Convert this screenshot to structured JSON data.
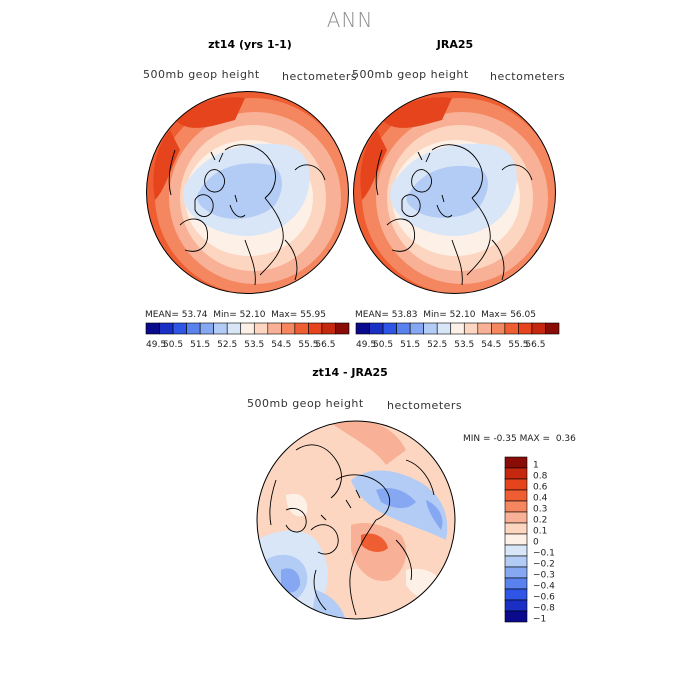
{
  "title": "ANN",
  "panels": [
    {
      "title": "zt14 (yrs 1-1)",
      "left_label": "500mb  geop  height",
      "right_label": "hectometers",
      "stats": {
        "mean_label": "MEAN=",
        "mean": "53.74",
        "min_label": "Min=",
        "min": "52.10",
        "max_label": "Max=",
        "max": "55.95"
      }
    },
    {
      "title": "JRA25",
      "left_label": "500mb  geop  height",
      "right_label": "hectometers",
      "stats": {
        "mean_label": "MEAN=",
        "mean": "53.83",
        "min_label": "Min=",
        "min": "52.10",
        "max_label": "Max=",
        "max": "56.05"
      }
    }
  ],
  "top_colorbar": {
    "labels": [
      "49.5",
      "50.5",
      "51.5",
      "52.5",
      "53.5",
      "54.5",
      "55.5",
      "56.5"
    ],
    "colors": [
      "#0a0a8c",
      "#1a2fc4",
      "#2f55e6",
      "#5a82ef",
      "#86a8f2",
      "#b3ccf5",
      "#d9e6f8",
      "#fdf0e6",
      "#fcd6c0",
      "#f8b196",
      "#f4875f",
      "#ef5e33",
      "#e5441d",
      "#c6270f",
      "#8a0c06"
    ]
  },
  "diff_panel": {
    "title": "zt14 - JRA25",
    "left_label": "500mb  geop  height",
    "right_label": "hectometers",
    "stats": {
      "min_label": "MIN =",
      "min": "-0.35",
      "max_label": "MAX =",
      "max": "0.36"
    }
  },
  "diff_colorbar": {
    "labels": [
      "1",
      "0.8",
      "0.6",
      "0.4",
      "0.3",
      "0.2",
      "0.1",
      "0",
      "−0.1",
      "−0.2",
      "−0.3",
      "−0.4",
      "−0.6",
      "−0.8",
      "−1"
    ],
    "colors": [
      "#8a0c06",
      "#c6270f",
      "#e5441d",
      "#ef5e33",
      "#f4875f",
      "#f8b196",
      "#fcd6c0",
      "#fdf0e6",
      "#d9e6f8",
      "#b3ccf5",
      "#86a8f2",
      "#5a82ef",
      "#2f55e6",
      "#1a2fc4",
      "#0a0a8c"
    ]
  }
}
